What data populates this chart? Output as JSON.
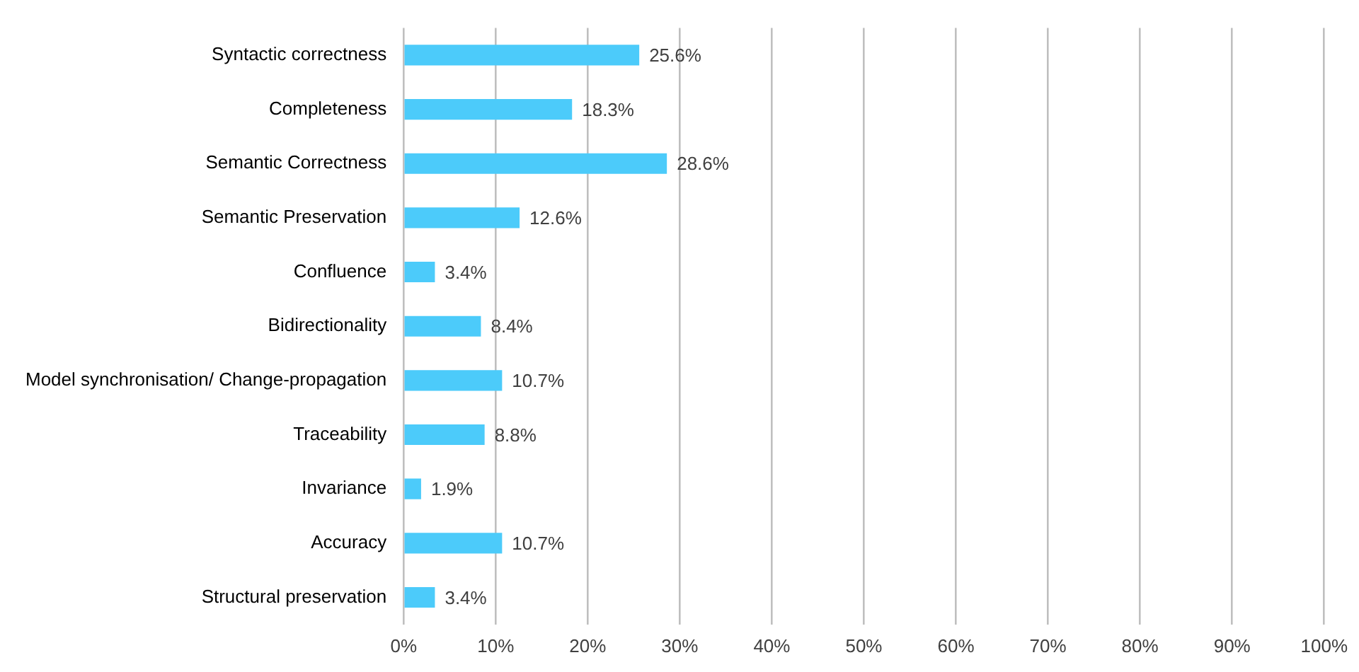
{
  "chart_data": {
    "type": "bar",
    "orientation": "horizontal",
    "categories": [
      "Syntactic correctness",
      "Completeness",
      "Semantic Correctness",
      "Semantic Preservation",
      "Confluence",
      "Bidirectionality",
      "Model synchronisation/ Change-propagation",
      "Traceability",
      "Invariance",
      "Accuracy",
      "Structural preservation"
    ],
    "values": [
      25.6,
      18.3,
      28.6,
      12.6,
      3.4,
      8.4,
      10.7,
      8.8,
      1.9,
      10.7,
      3.4
    ],
    "value_labels": [
      "25.6%",
      "18.3%",
      "28.6%",
      "12.6%",
      "3.4%",
      "8.4%",
      "10.7%",
      "8.8%",
      "1.9%",
      "10.7%",
      "3.4%"
    ],
    "color": "#4ccbfa",
    "xlim": [
      0,
      100
    ],
    "xticks": [
      {
        "value": 0,
        "label": "0%"
      },
      {
        "value": 10,
        "label": "10%"
      },
      {
        "value": 20,
        "label": "20%"
      },
      {
        "value": 30,
        "label": "30%"
      },
      {
        "value": 40,
        "label": "40%"
      },
      {
        "value": 50,
        "label": "50%"
      },
      {
        "value": 60,
        "label": "60%"
      },
      {
        "value": 70,
        "label": "70%"
      },
      {
        "value": 80,
        "label": "80%"
      },
      {
        "value": 90,
        "label": "90%"
      },
      {
        "value": 100,
        "label": "100%"
      }
    ],
    "grid": "x",
    "legend": false
  }
}
